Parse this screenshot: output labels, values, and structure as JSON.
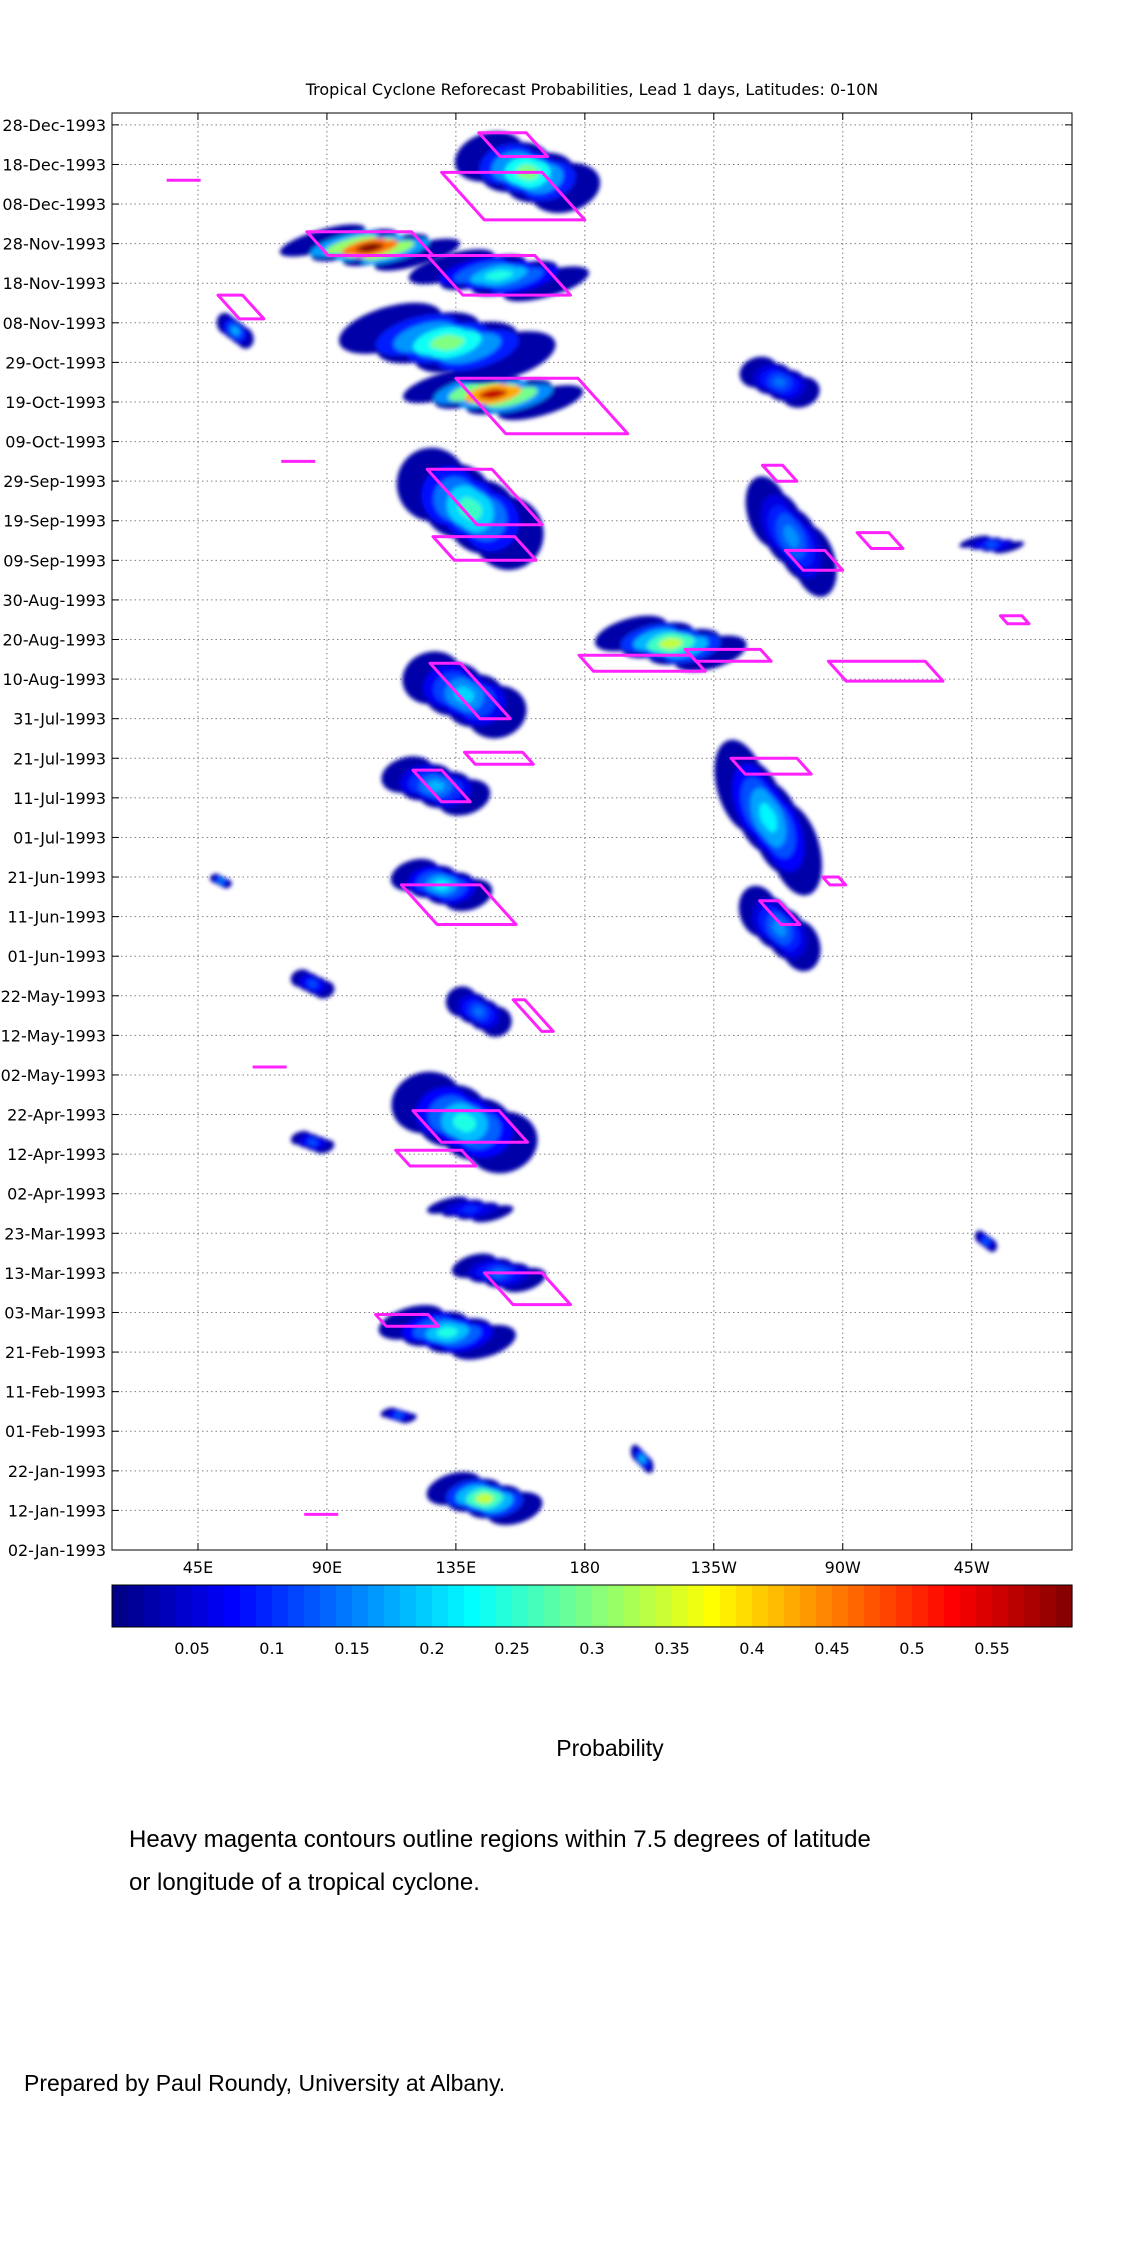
{
  "chart_data": {
    "type": "heatmap",
    "title": "Tropical Cyclone Reforecast Probabilities, Lead 1 days, Latitudes: 0-10N",
    "x_axis": {
      "label": "",
      "range_deg_east": [
        15,
        350
      ],
      "ticks": [
        {
          "label": "45E",
          "lon": 45
        },
        {
          "label": "90E",
          "lon": 90
        },
        {
          "label": "135E",
          "lon": 135
        },
        {
          "label": "180",
          "lon": 180
        },
        {
          "label": "135W",
          "lon": 225
        },
        {
          "label": "90W",
          "lon": 270
        },
        {
          "label": "45W",
          "lon": 315
        }
      ],
      "grid": true
    },
    "y_axis": {
      "label": "",
      "range": [
        "1993-01-02",
        "1993-12-31"
      ],
      "ticks": [
        "02-Jan-1993",
        "12-Jan-1993",
        "22-Jan-1993",
        "01-Feb-1993",
        "11-Feb-1993",
        "21-Feb-1993",
        "03-Mar-1993",
        "13-Mar-1993",
        "23-Mar-1993",
        "02-Apr-1993",
        "12-Apr-1993",
        "22-Apr-1993",
        "02-May-1993",
        "12-May-1993",
        "22-May-1993",
        "01-Jun-1993",
        "11-Jun-1993",
        "21-Jun-1993",
        "01-Jul-1993",
        "11-Jul-1993",
        "21-Jul-1993",
        "31-Jul-1993",
        "10-Aug-1993",
        "20-Aug-1993",
        "30-Aug-1993",
        "09-Sep-1993",
        "19-Sep-1993",
        "29-Sep-1993",
        "09-Oct-1993",
        "19-Oct-1993",
        "29-Oct-1993",
        "08-Nov-1993",
        "18-Nov-1993",
        "28-Nov-1993",
        "08-Dec-1993",
        "18-Dec-1993",
        "28-Dec-1993"
      ],
      "grid": true
    },
    "colorbar": {
      "label": "Probability",
      "range": [
        0,
        0.6
      ],
      "ticks": [
        "0.05",
        "0.1",
        "0.15",
        "0.2",
        "0.25",
        "0.3",
        "0.35",
        "0.4",
        "0.45",
        "0.5",
        "0.55"
      ],
      "colormap": "jet",
      "orientation": "horizontal"
    },
    "features": [
      {
        "date": "1993-01-15",
        "lon": 145,
        "lon_width": 32,
        "days": 14,
        "peak": 0.34
      },
      {
        "date": "1993-01-25",
        "lon": 200,
        "lon_width": 6,
        "days": 8,
        "peak": 0.18
      },
      {
        "date": "1993-02-05",
        "lon": 115,
        "lon_width": 10,
        "days": 4,
        "peak": 0.12
      },
      {
        "date": "1993-02-26",
        "lon": 132,
        "lon_width": 38,
        "days": 14,
        "peak": 0.24
      },
      {
        "date": "1993-03-13",
        "lon": 150,
        "lon_width": 26,
        "days": 10,
        "peak": 0.14
      },
      {
        "date": "1993-03-29",
        "lon": 140,
        "lon_width": 24,
        "days": 6,
        "peak": 0.1
      },
      {
        "date": "1993-04-20",
        "lon": 138,
        "lon_width": 40,
        "days": 28,
        "peak": 0.24
      },
      {
        "date": "1993-05-18",
        "lon": 143,
        "lon_width": 18,
        "days": 14,
        "peak": 0.14
      },
      {
        "date": "1993-05-25",
        "lon": 85,
        "lon_width": 12,
        "days": 8,
        "peak": 0.12
      },
      {
        "date": "1993-04-15",
        "lon": 85,
        "lon_width": 12,
        "days": 6,
        "peak": 0.12
      },
      {
        "date": "1993-06-19",
        "lon": 130,
        "lon_width": 28,
        "days": 14,
        "peak": 0.22
      },
      {
        "date": "1993-07-14",
        "lon": 128,
        "lon_width": 30,
        "days": 16,
        "peak": 0.18
      },
      {
        "date": "1993-08-06",
        "lon": 138,
        "lon_width": 34,
        "days": 24,
        "peak": 0.2
      },
      {
        "date": "1993-08-19",
        "lon": 210,
        "lon_width": 42,
        "days": 14,
        "peak": 0.34
      },
      {
        "date": "1993-07-06",
        "lon": 244,
        "lon_width": 28,
        "days": 44,
        "peak": 0.22
      },
      {
        "date": "1993-06-08",
        "lon": 248,
        "lon_width": 22,
        "days": 24,
        "peak": 0.16
      },
      {
        "date": "1993-09-22",
        "lon": 140,
        "lon_width": 40,
        "days": 34,
        "peak": 0.26
      },
      {
        "date": "1993-10-21",
        "lon": 148,
        "lon_width": 50,
        "days": 12,
        "peak": 0.56
      },
      {
        "date": "1993-11-03",
        "lon": 132,
        "lon_width": 60,
        "days": 20,
        "peak": 0.3
      },
      {
        "date": "1993-11-27",
        "lon": 105,
        "lon_width": 50,
        "days": 10,
        "peak": 0.6
      },
      {
        "date": "1993-11-20",
        "lon": 150,
        "lon_width": 50,
        "days": 12,
        "peak": 0.24
      },
      {
        "date": "1993-12-16",
        "lon": 160,
        "lon_width": 40,
        "days": 22,
        "peak": 0.3
      },
      {
        "date": "1993-09-15",
        "lon": 252,
        "lon_width": 24,
        "days": 34,
        "peak": 0.16
      },
      {
        "date": "1993-10-24",
        "lon": 248,
        "lon_width": 22,
        "days": 14,
        "peak": 0.14
      },
      {
        "date": "1993-09-13",
        "lon": 322,
        "lon_width": 18,
        "days": 4,
        "peak": 0.12
      },
      {
        "date": "1993-03-21",
        "lon": 320,
        "lon_width": 6,
        "days": 6,
        "peak": 0.12
      },
      {
        "date": "1993-06-20",
        "lon": 53,
        "lon_width": 6,
        "days": 4,
        "peak": 0.14
      },
      {
        "date": "1993-11-06",
        "lon": 58,
        "lon_width": 10,
        "days": 10,
        "peak": 0.18
      }
    ],
    "cyclone_contours": [
      {
        "date": "1993-01-11",
        "lon": 88,
        "note": "short magenta segment"
      },
      {
        "date": "1993-03-01",
        "lon": 118,
        "lon_width": 22,
        "days": 3
      },
      {
        "date": "1993-03-09",
        "lon": 160,
        "lon_width": 30,
        "days": 8
      },
      {
        "date": "1993-04-11",
        "lon": 128,
        "lon_width": 28,
        "days": 4
      },
      {
        "date": "1993-04-19",
        "lon": 140,
        "lon_width": 40,
        "days": 8
      },
      {
        "date": "1993-05-04",
        "lon": 70,
        "note": "short magenta segment"
      },
      {
        "date": "1993-05-17",
        "lon": 162,
        "lon_width": 14,
        "days": 8
      },
      {
        "date": "1993-06-14",
        "lon": 136,
        "lon_width": 40,
        "days": 10
      },
      {
        "date": "1993-06-12",
        "lon": 248,
        "lon_width": 14,
        "days": 6
      },
      {
        "date": "1993-06-20",
        "lon": 267,
        "lon_width": 8,
        "days": 2
      },
      {
        "date": "1993-07-14",
        "lon": 130,
        "lon_width": 20,
        "days": 8
      },
      {
        "date": "1993-07-21",
        "lon": 150,
        "lon_width": 24,
        "days": 3
      },
      {
        "date": "1993-07-19",
        "lon": 245,
        "lon_width": 28,
        "days": 4
      },
      {
        "date": "1993-08-07",
        "lon": 140,
        "lon_width": 28,
        "days": 14
      },
      {
        "date": "1993-08-14",
        "lon": 200,
        "lon_width": 44,
        "days": 4
      },
      {
        "date": "1993-08-12",
        "lon": 285,
        "lon_width": 40,
        "days": 5
      },
      {
        "date": "1993-08-16",
        "lon": 230,
        "lon_width": 30,
        "days": 3
      },
      {
        "date": "1993-08-25",
        "lon": 330,
        "lon_width": 10,
        "days": 2
      },
      {
        "date": "1993-09-09",
        "lon": 260,
        "lon_width": 20,
        "days": 5
      },
      {
        "date": "1993-09-12",
        "lon": 145,
        "lon_width": 36,
        "days": 6
      },
      {
        "date": "1993-09-14",
        "lon": 283,
        "lon_width": 16,
        "days": 4
      },
      {
        "date": "1993-09-25",
        "lon": 145,
        "lon_width": 40,
        "days": 14
      },
      {
        "date": "1993-10-01",
        "lon": 248,
        "lon_width": 12,
        "days": 4
      },
      {
        "date": "1993-10-04",
        "lon": 80,
        "note": "short magenta segment"
      },
      {
        "date": "1993-10-18",
        "lon": 165,
        "lon_width": 60,
        "days": 14
      },
      {
        "date": "1993-11-12",
        "lon": 60,
        "lon_width": 16,
        "days": 6
      },
      {
        "date": "1993-11-20",
        "lon": 150,
        "lon_width": 50,
        "days": 10
      },
      {
        "date": "1993-11-28",
        "lon": 105,
        "lon_width": 44,
        "days": 6
      },
      {
        "date": "1993-12-10",
        "lon": 155,
        "lon_width": 50,
        "days": 12
      },
      {
        "date": "1993-12-23",
        "lon": 155,
        "lon_width": 24,
        "days": 6
      },
      {
        "date": "1993-12-14",
        "lon": 40,
        "note": "short magenta segment"
      }
    ]
  },
  "annotations": {
    "note_line_1": "Heavy magenta contours outline regions within 7.5 degrees of latitude",
    "note_line_2": "or longitude of a tropical cyclone.",
    "credit": "Prepared by Paul Roundy, University at Albany."
  },
  "colors": {
    "contour": "#ff22ff",
    "grid": "#808080"
  }
}
